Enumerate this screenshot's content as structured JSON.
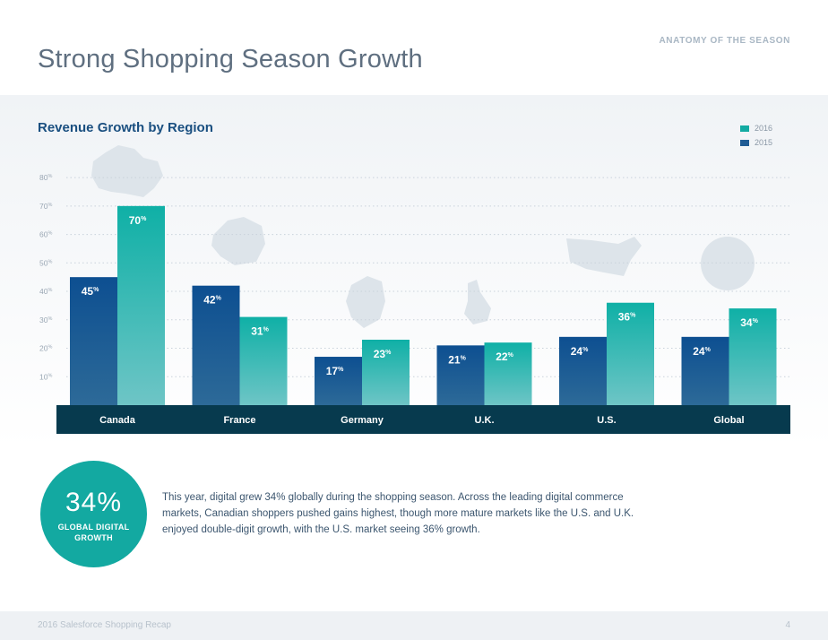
{
  "header": {
    "kicker": "ANATOMY OF THE SEASON",
    "title": "Strong Shopping Season Growth"
  },
  "chart_data": {
    "type": "bar",
    "title": "Revenue Growth by Region",
    "categories": [
      "Canada",
      "France",
      "Germany",
      "U.K.",
      "U.S.",
      "Global"
    ],
    "series": [
      {
        "name": "2015",
        "values": [
          45,
          42,
          17,
          21,
          24,
          24
        ],
        "color": "#1f5b94"
      },
      {
        "name": "2016",
        "values": [
          70,
          31,
          23,
          22,
          36,
          34
        ],
        "color": "#13aaa2"
      }
    ],
    "value_suffix": "%",
    "yticks": [
      10,
      20,
      30,
      40,
      50,
      60,
      70,
      80
    ],
    "ylim": [
      0,
      80
    ],
    "grid": true,
    "legend_position": "top-right",
    "xlabel": "",
    "ylabel": "",
    "category_bar_color": "#073a4e"
  },
  "legend": [
    {
      "label": "2016",
      "color": "#13aaa2"
    },
    {
      "label": "2015",
      "color": "#1f5b94"
    }
  ],
  "callout": {
    "value": "34%",
    "label": "GLOBAL DIGITAL GROWTH"
  },
  "summary": "This year, digital grew 34% globally during the shopping season. Across the leading digital commerce markets, Canadian shoppers pushed gains highest, though more mature markets like the U.S. and U.K. enjoyed double-digit growth, with the U.S. market seeing 36% growth.",
  "footer": {
    "text": "2016 Salesforce Shopping Recap",
    "page_number": "4"
  }
}
